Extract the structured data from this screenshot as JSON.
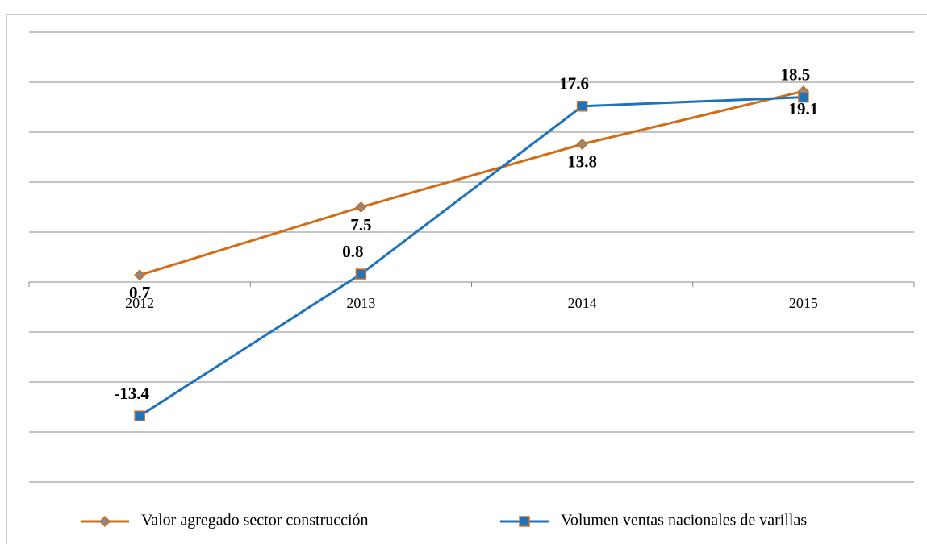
{
  "chart_data": {
    "type": "line",
    "categories": [
      "2012",
      "2013",
      "2014",
      "2015"
    ],
    "series": [
      {
        "name": "Valor agregado sector construcción",
        "color": "#d06d15",
        "marker": "diamond",
        "values": [
          0.7,
          7.5,
          13.8,
          19.1
        ]
      },
      {
        "name": "Volumen ventas nacionales de varillas",
        "color": "#1f73bd",
        "marker": "square",
        "values": [
          -13.4,
          0.8,
          17.6,
          18.5
        ]
      }
    ],
    "ylim": [
      -20,
      25
    ],
    "yticks": [
      -20,
      -15,
      -10,
      -5,
      0,
      5,
      10,
      15,
      20,
      25
    ],
    "grid": true,
    "legend": "bottom"
  }
}
